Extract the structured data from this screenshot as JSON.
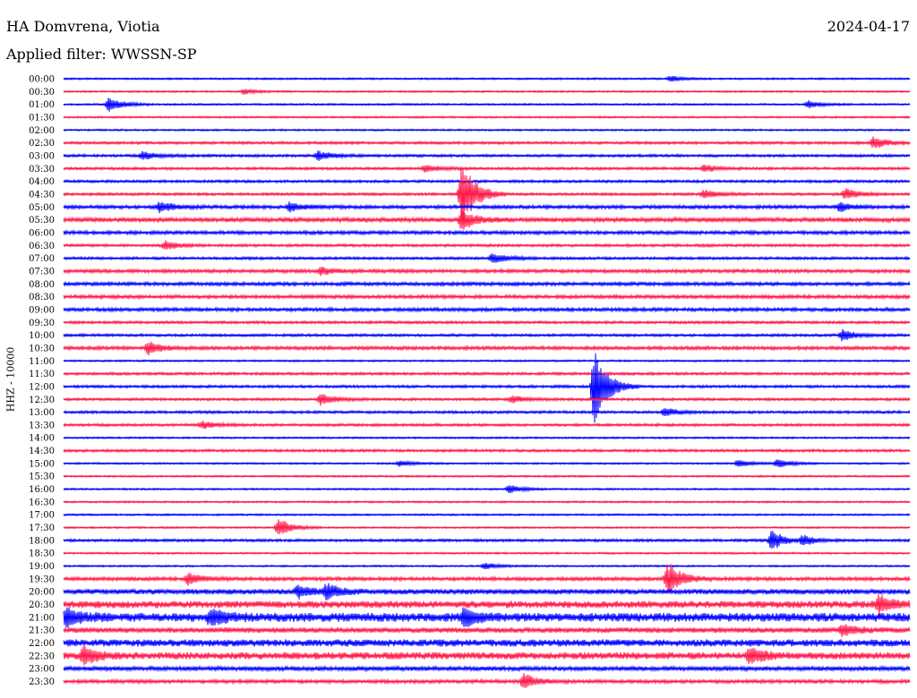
{
  "header": {
    "station": "HA Domvrena, Viotia",
    "date": "2024-04-17",
    "filter": "Applied filter: WWSSN-SP",
    "channel": "HHZ - 10000"
  },
  "chart_data": {
    "type": "line",
    "title": "HA Domvrena, Viotia",
    "xlabel": "",
    "ylabel": "HHZ - 10000",
    "grid": false,
    "trace_colors": [
      "#0000ff",
      "#ff1a4a"
    ],
    "row_labels": [
      "00:00",
      "00:30",
      "01:00",
      "01:30",
      "02:00",
      "02:30",
      "03:00",
      "03:30",
      "04:00",
      "04:30",
      "05:00",
      "05:30",
      "06:00",
      "06:30",
      "07:00",
      "07:30",
      "08:00",
      "08:30",
      "09:00",
      "09:30",
      "10:00",
      "10:30",
      "11:00",
      "11:30",
      "12:00",
      "12:30",
      "13:00",
      "13:30",
      "14:00",
      "14:30",
      "15:00",
      "15:30",
      "16:00",
      "16:30",
      "17:00",
      "17:30",
      "18:00",
      "18:30",
      "19:00",
      "19:30",
      "20:00",
      "20:30",
      "21:00",
      "21:30",
      "22:00",
      "22:30",
      "23:00",
      "23:30"
    ],
    "x_range_minutes": [
      0,
      30
    ],
    "noise_level": [
      1,
      1,
      1,
      1,
      1,
      1.5,
      1.5,
      1.5,
      1.5,
      1.5,
      2,
      2.5,
      2,
      1.5,
      1.5,
      2,
      2,
      2,
      2,
      1.5,
      1.5,
      2,
      1,
      1.5,
      1.5,
      1.5,
      1.5,
      1.5,
      1,
      1.5,
      1,
      1,
      1,
      1,
      1,
      1,
      1.5,
      1,
      1,
      2,
      3,
      4,
      5,
      3,
      4,
      4,
      2.5,
      2
    ],
    "events": [
      {
        "row": 0,
        "minute": 21.5,
        "amplitude": 3
      },
      {
        "row": 1,
        "minute": 6.4,
        "amplitude": 3
      },
      {
        "row": 2,
        "minute": 1.6,
        "amplitude": 9
      },
      {
        "row": 2,
        "minute": 26.4,
        "amplitude": 4
      },
      {
        "row": 5,
        "minute": 28.7,
        "amplitude": 7
      },
      {
        "row": 6,
        "minute": 2.8,
        "amplitude": 5
      },
      {
        "row": 6,
        "minute": 9.0,
        "amplitude": 6
      },
      {
        "row": 7,
        "minute": 12.8,
        "amplitude": 4
      },
      {
        "row": 7,
        "minute": 22.7,
        "amplitude": 4
      },
      {
        "row": 9,
        "minute": 14.1,
        "amplitude": 40
      },
      {
        "row": 9,
        "minute": 22.7,
        "amplitude": 5
      },
      {
        "row": 9,
        "minute": 27.7,
        "amplitude": 7
      },
      {
        "row": 10,
        "minute": 3.4,
        "amplitude": 6
      },
      {
        "row": 10,
        "minute": 8.0,
        "amplitude": 5
      },
      {
        "row": 10,
        "minute": 27.5,
        "amplitude": 5
      },
      {
        "row": 11,
        "minute": 14.1,
        "amplitude": 12
      },
      {
        "row": 13,
        "minute": 3.6,
        "amplitude": 5
      },
      {
        "row": 14,
        "minute": 15.2,
        "amplitude": 7
      },
      {
        "row": 15,
        "minute": 9.1,
        "amplitude": 4
      },
      {
        "row": 20,
        "minute": 27.6,
        "amplitude": 6
      },
      {
        "row": 21,
        "minute": 3.0,
        "amplitude": 8
      },
      {
        "row": 24,
        "minute": 18.8,
        "amplitude": 42
      },
      {
        "row": 25,
        "minute": 9.1,
        "amplitude": 7
      },
      {
        "row": 25,
        "minute": 15.9,
        "amplitude": 4
      },
      {
        "row": 26,
        "minute": 21.3,
        "amplitude": 5
      },
      {
        "row": 27,
        "minute": 4.9,
        "amplitude": 4
      },
      {
        "row": 30,
        "minute": 11.9,
        "amplitude": 3
      },
      {
        "row": 30,
        "minute": 23.9,
        "amplitude": 4
      },
      {
        "row": 30,
        "minute": 25.3,
        "amplitude": 5
      },
      {
        "row": 32,
        "minute": 15.8,
        "amplitude": 5
      },
      {
        "row": 35,
        "minute": 7.6,
        "amplitude": 11
      },
      {
        "row": 36,
        "minute": 25.1,
        "amplitude": 12
      },
      {
        "row": 36,
        "minute": 26.2,
        "amplitude": 5
      },
      {
        "row": 38,
        "minute": 14.9,
        "amplitude": 4
      },
      {
        "row": 39,
        "minute": 21.4,
        "amplitude": 20
      },
      {
        "row": 39,
        "minute": 4.4,
        "amplitude": 7
      },
      {
        "row": 40,
        "minute": 8.3,
        "amplitude": 7
      },
      {
        "row": 40,
        "minute": 9.3,
        "amplitude": 9
      },
      {
        "row": 41,
        "minute": 28.9,
        "amplitude": 10
      },
      {
        "row": 42,
        "minute": 0.1,
        "amplitude": 9
      },
      {
        "row": 42,
        "minute": 5.2,
        "amplitude": 9
      },
      {
        "row": 42,
        "minute": 14.2,
        "amplitude": 10
      },
      {
        "row": 43,
        "minute": 27.6,
        "amplitude": 7
      },
      {
        "row": 45,
        "minute": 0.7,
        "amplitude": 10
      },
      {
        "row": 45,
        "minute": 24.3,
        "amplitude": 9
      },
      {
        "row": 47,
        "minute": 16.3,
        "amplitude": 9
      }
    ]
  }
}
